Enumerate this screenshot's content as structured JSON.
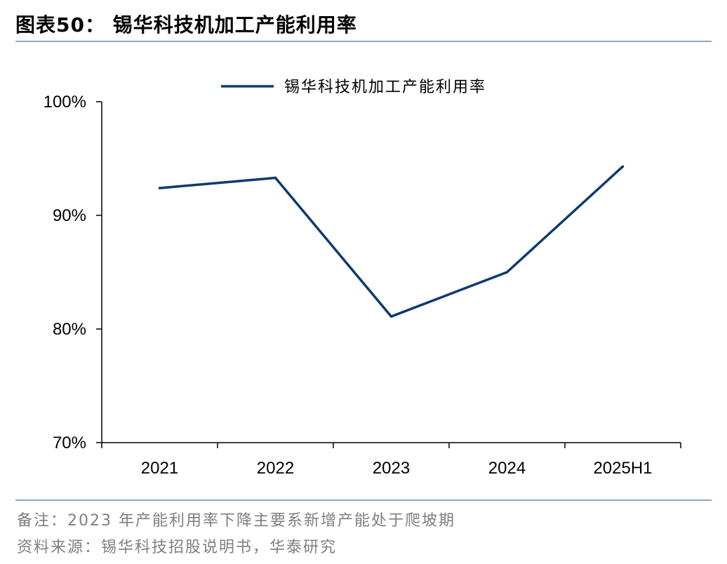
{
  "figure_title": "图表50：  锡华科技机加工产能利用率",
  "note": "备注：2023 年产能利用率下降主要系新增产能处于爬坡期",
  "source": "资料来源：锡华科技招股说明书，华泰研究",
  "colors": {
    "line": "#0e3a6e",
    "rule": "#8fa6c3",
    "note_text": "#7f7f7f"
  },
  "chart_data": {
    "type": "line",
    "categories": [
      "2021",
      "2022",
      "2023",
      "2024",
      "2025H1"
    ],
    "series": [
      {
        "name": "锡华科技机加工产能利用率",
        "values": [
          92.4,
          93.3,
          81.1,
          85.0,
          94.3
        ]
      }
    ],
    "ylim": [
      70,
      100
    ],
    "yticks": [
      70,
      80,
      90,
      100
    ],
    "ytick_labels": [
      "70%",
      "80%",
      "90%",
      "100%"
    ],
    "grid": false,
    "legend_position": "top-center"
  }
}
